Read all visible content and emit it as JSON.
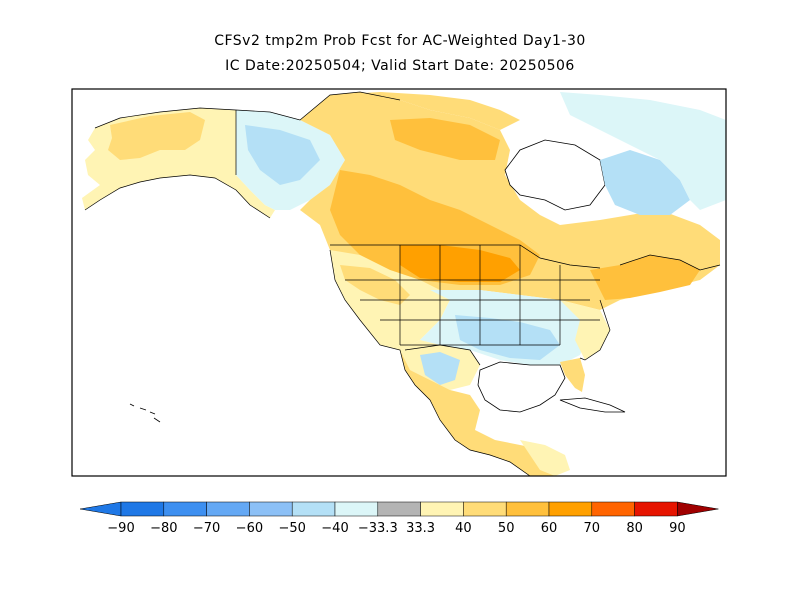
{
  "title": {
    "line1": "CFSv2 tmp2m Prob Fcst for AC-Weighted Day1-30",
    "line2": "IC Date:20250504; Valid Start Date: 20250506"
  },
  "colors": {
    "blue_90": "#1f78e6",
    "blue_80": "#3d8ff0",
    "blue_70": "#64a8f4",
    "blue_60": "#8cc0f6",
    "blue_50": "#b4e0f6",
    "blue_40": "#dcf6f8",
    "neutral": "#b4b4b4",
    "orange_40": "#fff4b4",
    "orange_50": "#ffdc78",
    "orange_60": "#ffc03c",
    "orange_70": "#ffa000",
    "orange_80": "#ff6400",
    "red_90": "#e61400",
    "deep_red": "#a00000",
    "land_na": "#ffffff",
    "ocean": "#ffffff",
    "border": "#000000"
  },
  "legend": {
    "labels": [
      "-90",
      "-80",
      "-70",
      "-60",
      "-50",
      "-40",
      "-33.3",
      "33.3",
      "40",
      "50",
      "60",
      "70",
      "80",
      "90"
    ]
  }
}
